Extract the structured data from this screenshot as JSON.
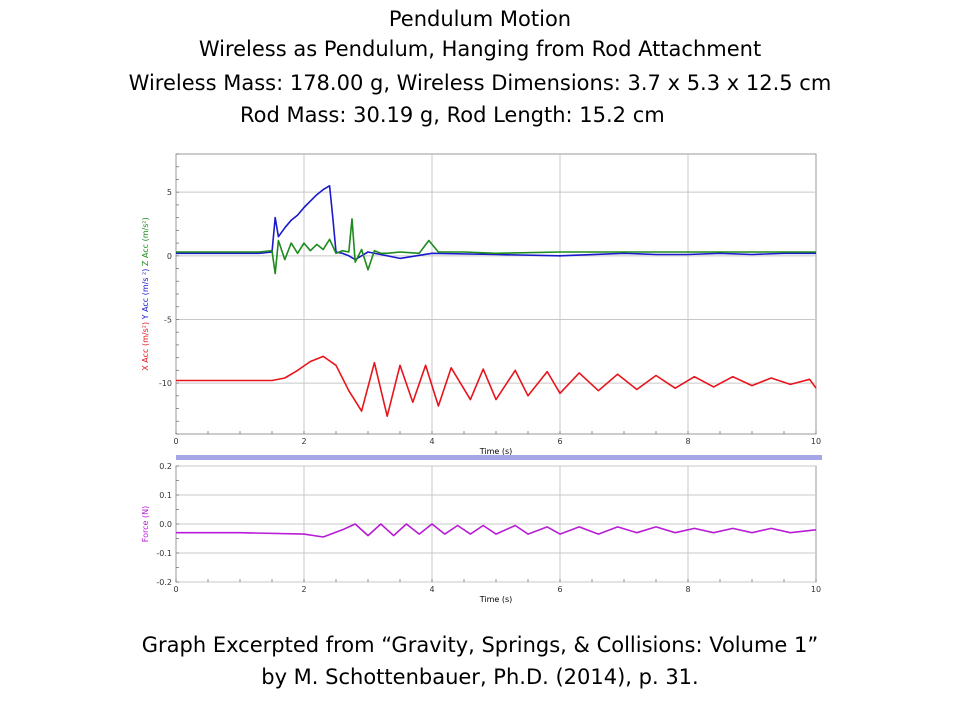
{
  "titles": {
    "line1": "Pendulum Motion",
    "line2": "Wireless as Pendulum, Hanging from Rod Attachment",
    "line3": "Wireless Mass: 178.00 g, Wireless Dimensions: 3.7 x 5.3 x 12.5 cm",
    "line4": "Rod Mass: 30.19 g, Rod Length: 15.2 cm"
  },
  "caption": {
    "line1": "Graph Excerpted from “Gravity, Springs, & Collisions: Volume 1”",
    "line2": "by M. Schottenbauer, Ph.D. (2014), p. 31."
  },
  "colors": {
    "x_acc": "#e8141c",
    "y_acc": "#1a1acc",
    "z_acc": "#1e8a1e",
    "force": "#b81cd6",
    "separator": "#a6a6e6",
    "grid": "#c8c8c8"
  },
  "chart_data": [
    {
      "type": "line",
      "xlabel": "Time (s)",
      "ylabels": [
        {
          "text": "X Acc (m/s²)",
          "color": "#e8141c"
        },
        {
          "text": "Y Acc (m/s ²)",
          "color": "#1a1acc"
        },
        {
          "text": "Z Acc (m/s²)",
          "color": "#1e8a1e"
        }
      ],
      "xlim": [
        0,
        10
      ],
      "ylim": [
        -14,
        8
      ],
      "xticks": [
        "0",
        "2",
        "4",
        "6",
        "8",
        "10"
      ],
      "yticks": [
        "5",
        "0",
        "-5",
        "-10"
      ],
      "grid": true,
      "series": [
        {
          "name": "Y Acc",
          "x": [
            0,
            1.3,
            1.5,
            1.55,
            1.6,
            1.7,
            1.8,
            1.9,
            2.0,
            2.1,
            2.2,
            2.3,
            2.4,
            2.45,
            2.5,
            2.6,
            2.7,
            2.8,
            3.0,
            3.2,
            3.5,
            4.0,
            5.0,
            6.0,
            7.0,
            7.5,
            8.0,
            8.5,
            9.0,
            9.5,
            10
          ],
          "values": [
            0.2,
            0.2,
            0.3,
            3.0,
            1.5,
            2.2,
            2.8,
            3.2,
            3.8,
            4.3,
            4.8,
            5.2,
            5.5,
            3.0,
            0.3,
            0.2,
            0.0,
            -0.3,
            0.3,
            0.1,
            -0.2,
            0.2,
            0.1,
            0.0,
            0.2,
            0.1,
            0.1,
            0.2,
            0.1,
            0.2,
            0.2
          ]
        },
        {
          "name": "Z Acc",
          "x": [
            0,
            1.3,
            1.5,
            1.55,
            1.6,
            1.7,
            1.8,
            1.9,
            2.0,
            2.1,
            2.2,
            2.3,
            2.4,
            2.5,
            2.6,
            2.7,
            2.75,
            2.8,
            2.9,
            3.0,
            3.1,
            3.2,
            3.3,
            3.5,
            3.8,
            3.95,
            4.1,
            4.5,
            5.0,
            6.0,
            7.0,
            8.0,
            9.0,
            10
          ],
          "values": [
            0.3,
            0.3,
            0.4,
            -1.4,
            1.2,
            -0.3,
            1.0,
            0.2,
            1.0,
            0.4,
            0.9,
            0.5,
            1.3,
            0.2,
            0.4,
            0.3,
            2.9,
            -0.5,
            0.5,
            -1.1,
            0.4,
            0.2,
            0.2,
            0.3,
            0.2,
            1.2,
            0.3,
            0.3,
            0.2,
            0.3,
            0.3,
            0.3,
            0.3,
            0.3
          ]
        },
        {
          "name": "X Acc",
          "x": [
            0,
            1.5,
            1.7,
            1.9,
            2.1,
            2.3,
            2.5,
            2.7,
            2.9,
            3.1,
            3.3,
            3.5,
            3.7,
            3.9,
            4.1,
            4.3,
            4.6,
            4.8,
            5.0,
            5.3,
            5.5,
            5.8,
            6.0,
            6.3,
            6.6,
            6.9,
            7.2,
            7.5,
            7.8,
            8.1,
            8.4,
            8.7,
            9.0,
            9.3,
            9.6,
            9.9,
            10
          ],
          "values": [
            -9.8,
            -9.8,
            -9.6,
            -9.0,
            -8.3,
            -7.9,
            -8.6,
            -10.6,
            -12.2,
            -8.4,
            -12.6,
            -8.6,
            -11.5,
            -8.6,
            -11.8,
            -8.8,
            -11.3,
            -8.9,
            -11.3,
            -9.0,
            -11.0,
            -9.1,
            -10.8,
            -9.2,
            -10.6,
            -9.3,
            -10.5,
            -9.4,
            -10.4,
            -9.5,
            -10.3,
            -9.5,
            -10.2,
            -9.6,
            -10.1,
            -9.7,
            -10.4
          ]
        }
      ]
    },
    {
      "type": "line",
      "xlabel": "Time (s)",
      "ylabel": "Force (N)",
      "xlim": [
        0,
        10
      ],
      "ylim": [
        -0.2,
        0.2
      ],
      "xticks": [
        "0",
        "2",
        "4",
        "6",
        "8",
        "10"
      ],
      "yticks": [
        "0.2",
        "0.1",
        "0.0",
        "-0.1",
        "-0.2"
      ],
      "grid": true,
      "series": [
        {
          "name": "Force",
          "x": [
            0,
            1,
            2,
            2.3,
            2.6,
            2.8,
            3.0,
            3.2,
            3.4,
            3.6,
            3.8,
            4.0,
            4.2,
            4.4,
            4.6,
            4.8,
            5.0,
            5.3,
            5.5,
            5.8,
            6.0,
            6.3,
            6.6,
            6.9,
            7.2,
            7.5,
            7.8,
            8.1,
            8.4,
            8.7,
            9.0,
            9.3,
            9.6,
            10
          ],
          "values": [
            -0.03,
            -0.03,
            -0.035,
            -0.045,
            -0.02,
            0.0,
            -0.04,
            0.0,
            -0.04,
            0.0,
            -0.035,
            0.0,
            -0.035,
            -0.005,
            -0.035,
            -0.005,
            -0.035,
            -0.005,
            -0.035,
            -0.01,
            -0.035,
            -0.01,
            -0.035,
            -0.01,
            -0.03,
            -0.01,
            -0.03,
            -0.015,
            -0.03,
            -0.015,
            -0.03,
            -0.015,
            -0.03,
            -0.02
          ]
        }
      ]
    }
  ]
}
